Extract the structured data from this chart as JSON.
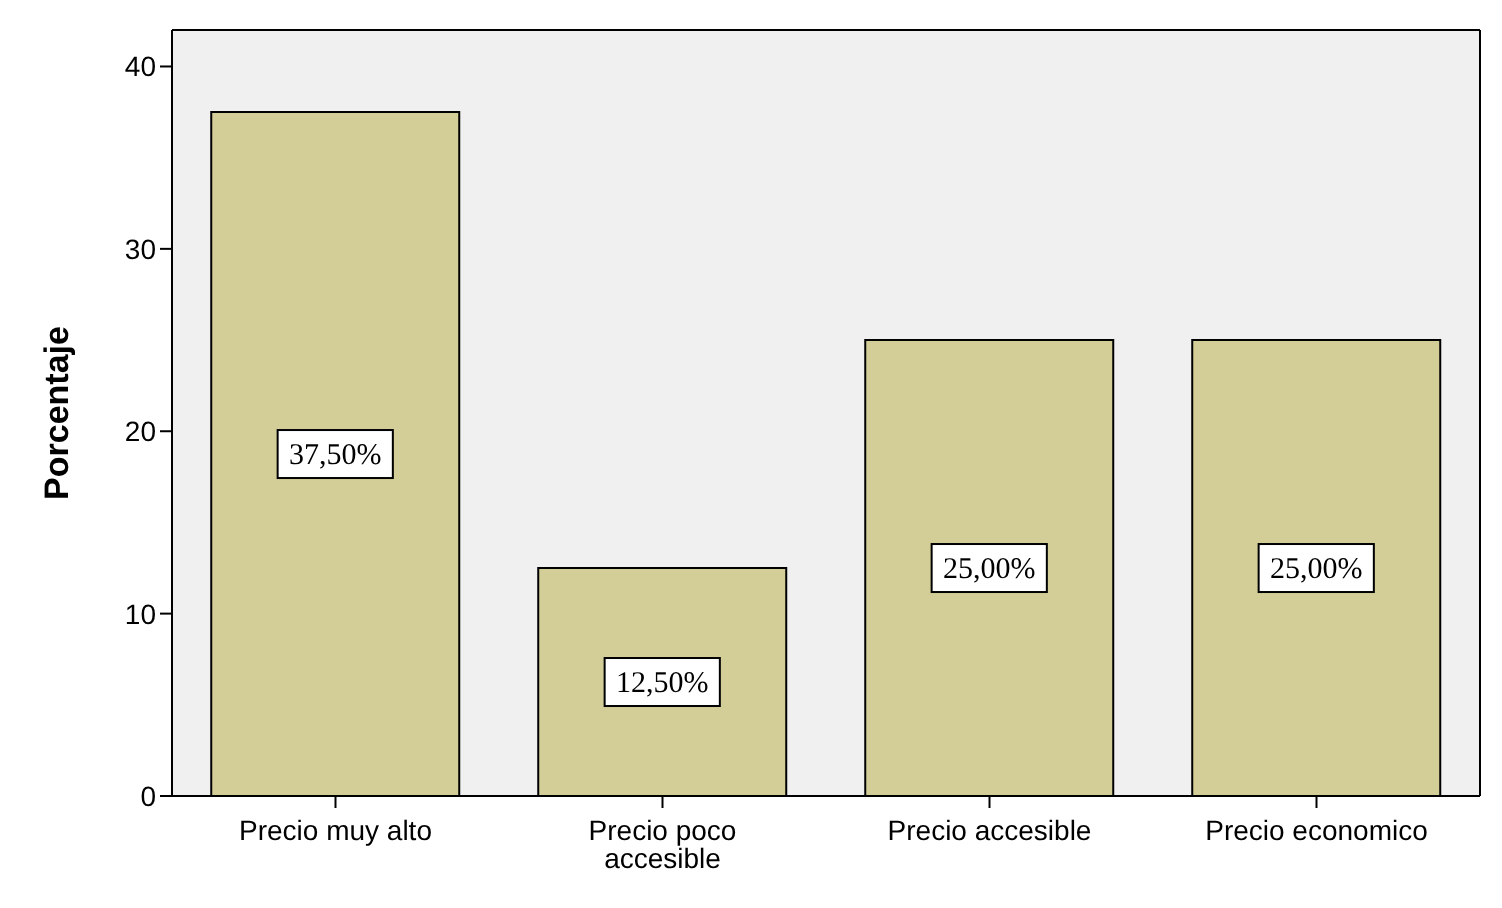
{
  "chart_data": {
    "type": "bar",
    "ylabel": "Porcentaje",
    "categories": [
      "Precio muy alto",
      "Precio poco accesible",
      "Precio accesible",
      "Precio economico"
    ],
    "values": [
      37.5,
      12.5,
      25,
      25
    ],
    "value_labels": [
      "37,50%",
      "12,50%",
      "25,00%",
      "25,00%"
    ],
    "color": "#d3ce97",
    "ylim": [
      0,
      42
    ],
    "yticks": [
      0,
      10,
      20,
      30,
      40
    ],
    "grid": false
  }
}
